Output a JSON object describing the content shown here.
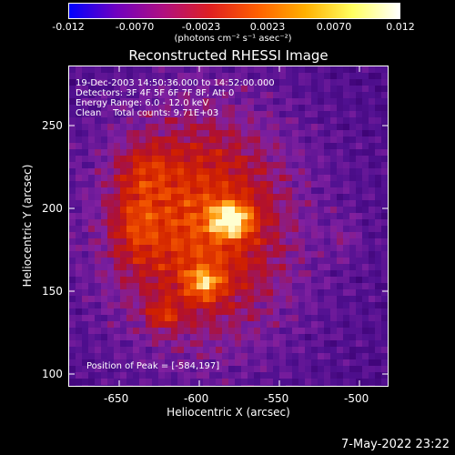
{
  "colorbar": {
    "tick_labels": [
      "-0.012",
      "-0.0070",
      "-0.0023",
      "0.0023",
      "0.0070",
      "0.012"
    ],
    "units": "(photons cm⁻² s⁻¹ asec⁻²)",
    "colors": [
      "#0000ff",
      "#7000c0",
      "#b01080",
      "#e02020",
      "#ff6000",
      "#ffb000",
      "#ffff60",
      "#ffffff"
    ]
  },
  "title": "Reconstructed RHESSI Image",
  "annotations": {
    "time_range": "19-Dec-2003 14:50:36.000 to 14:52:00.000",
    "detectors": "Detectors: 3F 4F 5F 6F 7F 8F, Att 0",
    "energy_range": "Energy Range: 6.0 - 12.0 keV",
    "clean_counts": "Clean    Total counts: 9.71E+03",
    "peak_position": "Position of Peak = [-584,197]"
  },
  "axes": {
    "x_label": "Heliocentric X (arcsec)",
    "y_label": "Heliocentric Y (arcsec)",
    "x_tick_labels": [
      "-650",
      "-600",
      "-550",
      "-500"
    ],
    "y_tick_labels": [
      "250",
      "200",
      "150",
      "100"
    ]
  },
  "footer_timestamp": "7-May-2022 23:22"
}
